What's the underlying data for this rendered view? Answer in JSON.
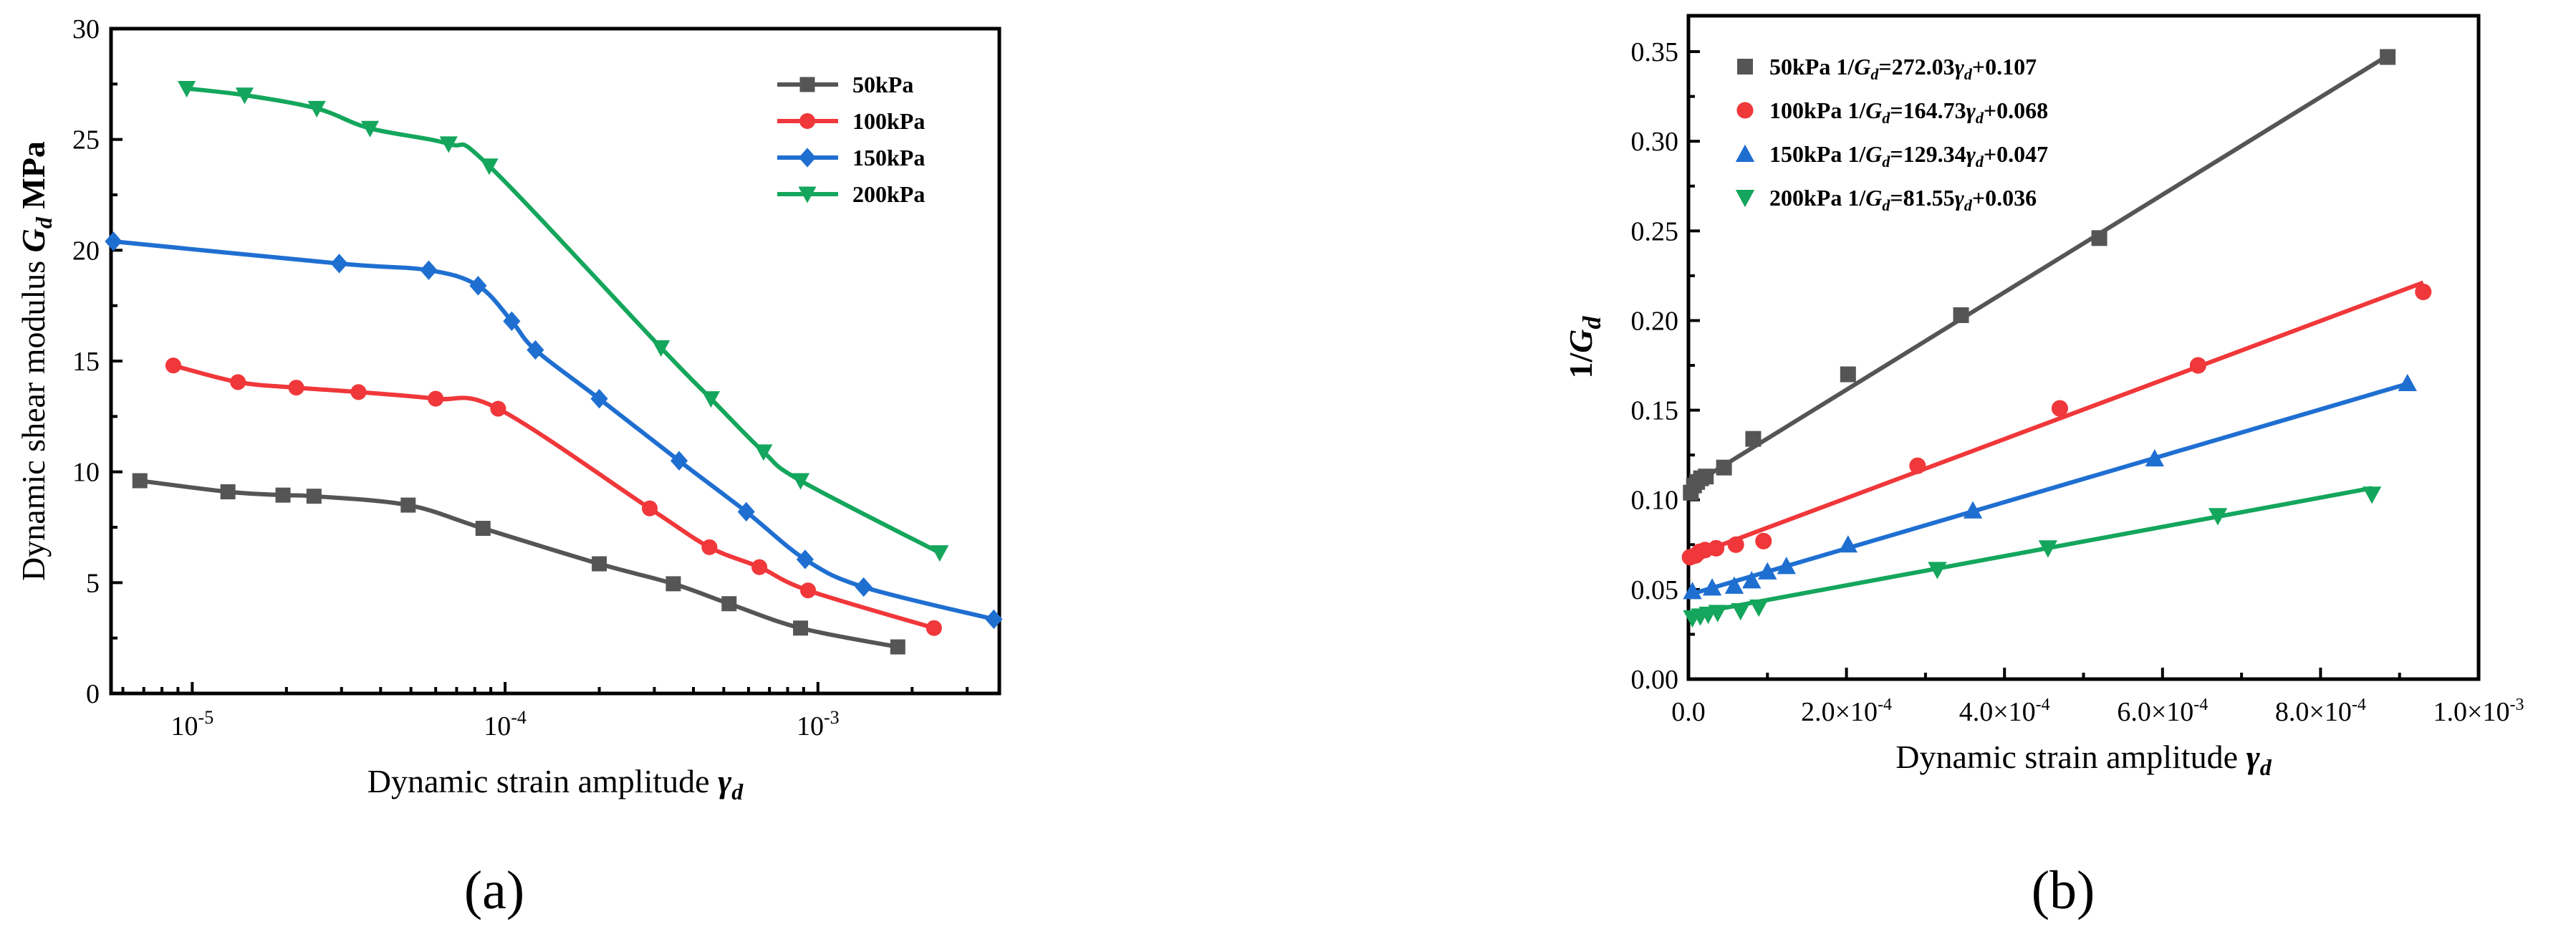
{
  "chart_data": [
    {
      "type": "line",
      "panel_label": "(a)",
      "xscale": "log",
      "xlim": [
        5.5e-06,
        0.0038
      ],
      "ylim": [
        0,
        30
      ],
      "ylabel": "Dynamic shear modulus G_d MPa",
      "ylabel_parts": [
        "Dynamic shear modulus ",
        "G",
        "d",
        " MPa"
      ],
      "xlabel_parts": [
        "Dynamic strain amplitude ",
        "γ",
        "d"
      ],
      "xticks": [
        {
          "value": 1e-05,
          "base": "10",
          "exp": "-5"
        },
        {
          "value": 0.0001,
          "base": "10",
          "exp": "-4"
        },
        {
          "value": 0.001,
          "base": "10",
          "exp": "-3"
        }
      ],
      "yticks": [
        0,
        5,
        10,
        15,
        20,
        25,
        30
      ],
      "legend_position": "top-right",
      "series": [
        {
          "name": "50kPa",
          "color": "#555555",
          "marker": "square",
          "x": [
            6.8e-06,
            1.3e-05,
            1.95e-05,
            2.45e-05,
            4.9e-05,
            8.5e-05,
            0.0002,
            0.000345,
            0.00052,
            0.00088,
            0.0018
          ],
          "y": [
            9.6,
            9.1,
            8.95,
            8.9,
            8.5,
            7.45,
            5.85,
            4.95,
            4.05,
            2.95,
            2.1
          ]
        },
        {
          "name": "100kPa",
          "color": "#f0373a",
          "marker": "circle",
          "x": [
            8.7e-06,
            1.4e-05,
            2.15e-05,
            3.4e-05,
            6e-05,
            9.5e-05,
            0.00029,
            0.00045,
            0.00065,
            0.00093,
            0.00235
          ],
          "y": [
            14.8,
            14.05,
            13.8,
            13.6,
            13.3,
            12.85,
            8.35,
            6.6,
            5.7,
            4.65,
            2.95
          ]
        },
        {
          "name": "150kPa",
          "color": "#1f6fd1",
          "marker": "diamond",
          "x": [
            5.6e-06,
            2.95e-05,
            5.7e-05,
            8.2e-05,
            0.000105,
            0.000125,
            0.0002,
            0.00036,
            0.00059,
            0.00091,
            0.0014,
            0.00365
          ],
          "y": [
            20.4,
            19.4,
            19.1,
            18.4,
            16.8,
            15.5,
            13.3,
            10.5,
            8.2,
            6.05,
            4.8,
            3.35
          ]
        },
        {
          "name": "200kPa",
          "color": "#14a65c",
          "marker": "triangle-down",
          "x": [
            9.6e-06,
            1.47e-05,
            2.5e-05,
            3.7e-05,
            6.6e-05,
            8.9e-05,
            0.000315,
            0.000455,
            0.00067,
            0.00088,
            0.00245
          ],
          "y": [
            27.3,
            27.0,
            26.4,
            25.5,
            24.8,
            23.8,
            15.6,
            13.3,
            10.9,
            9.6,
            6.35
          ]
        }
      ]
    },
    {
      "type": "scatter",
      "panel_label": "(b)",
      "xlim": [
        0,
        0.001
      ],
      "ylim": [
        0,
        0.37
      ],
      "ylabel_parts": [
        "1/",
        "G",
        "d"
      ],
      "xlabel_parts": [
        "Dynamic strain amplitude ",
        "γ",
        "d"
      ],
      "xticks": [
        {
          "value": 0,
          "mant": "0.0",
          "exp": ""
        },
        {
          "value": 0.0002,
          "mant": "2.0×10",
          "exp": "-4"
        },
        {
          "value": 0.0004,
          "mant": "4.0×10",
          "exp": "-4"
        },
        {
          "value": 0.0006,
          "mant": "6.0×10",
          "exp": "-4"
        },
        {
          "value": 0.0008,
          "mant": "8.0×10",
          "exp": "-4"
        },
        {
          "value": 0.001,
          "mant": "1.0×10",
          "exp": "-3"
        }
      ],
      "yticks": [
        "0.00",
        "0.05",
        "0.10",
        "0.15",
        "0.20",
        "0.25",
        "0.30",
        "0.35"
      ],
      "legend_position": "top-left",
      "series": [
        {
          "name": "50kPa",
          "color": "#555555",
          "marker": "square",
          "fit_prefix": "1/",
          "fit_var": "G",
          "fit_sub": "d",
          "fit_eq": "=272.03",
          "fit_gamma": "γ",
          "fit_gsub": "d",
          "fit_const": "+0.107",
          "slope": 272.03,
          "intercept": 0.107,
          "fit_x": [
            0,
            0.00089
          ],
          "x": [
            3e-06,
            7e-06,
            1.1e-05,
            1.6e-05,
            2.2e-05,
            4.5e-05,
            8.2e-05,
            0.000202,
            0.000345,
            0.00052,
            0.000885
          ],
          "y": [
            0.104,
            0.108,
            0.11,
            0.112,
            0.113,
            0.118,
            0.134,
            0.17,
            0.203,
            0.246,
            0.347
          ]
        },
        {
          "name": "100kPa",
          "color": "#f0373a",
          "marker": "circle",
          "fit_prefix": "1/",
          "fit_var": "G",
          "fit_sub": "d",
          "fit_eq": "=164.73",
          "fit_gamma": "γ",
          "fit_gsub": "d",
          "fit_const": "+0.068",
          "slope": 164.73,
          "intercept": 0.068,
          "fit_x": [
            0,
            0.00093
          ],
          "x": [
            2e-06,
            9e-06,
            1.4e-05,
            2.1e-05,
            3.5e-05,
            6e-05,
            9.5e-05,
            0.00029,
            0.00047,
            0.000645,
            0.00093
          ],
          "y": [
            0.068,
            0.069,
            0.071,
            0.072,
            0.073,
            0.075,
            0.077,
            0.119,
            0.151,
            0.175,
            0.216
          ]
        },
        {
          "name": "150kPa",
          "color": "#1f6fd1",
          "marker": "triangle-up",
          "fit_prefix": "1/",
          "fit_var": "G",
          "fit_sub": "d",
          "fit_eq": "=129.34",
          "fit_gamma": "γ",
          "fit_gsub": "d",
          "fit_const": "+0.047",
          "slope": 129.34,
          "intercept": 0.047,
          "fit_x": [
            0,
            0.00091
          ],
          "x": [
            5e-06,
            3e-05,
            5.8e-05,
            8e-05,
            0.0001,
            0.000124,
            0.000202,
            0.00036,
            0.00059,
            0.00091
          ],
          "y": [
            0.049,
            0.051,
            0.052,
            0.055,
            0.06,
            0.063,
            0.075,
            0.094,
            0.123,
            0.165
          ]
        },
        {
          "name": "200kPa",
          "color": "#14a65c",
          "marker": "triangle-down",
          "fit_prefix": "1/",
          "fit_var": "G",
          "fit_sub": "d",
          "fit_eq": "=81.55",
          "fit_gamma": "γ",
          "fit_gsub": "d",
          "fit_const": "+0.036",
          "slope": 81.55,
          "intercept": 0.036,
          "fit_x": [
            0,
            0.000865
          ],
          "x": [
            5e-06,
            1.5e-05,
            2.5e-05,
            3.7e-05,
            6.6e-05,
            8.9e-05,
            0.000315,
            0.000455,
            0.00067,
            0.000865
          ],
          "y": [
            0.034,
            0.035,
            0.036,
            0.037,
            0.038,
            0.04,
            0.061,
            0.073,
            0.091,
            0.103
          ]
        }
      ]
    }
  ]
}
